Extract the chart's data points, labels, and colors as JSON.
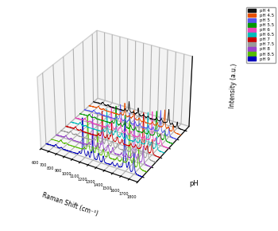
{
  "ph_labels": [
    "pH 4",
    "pH 4.5",
    "pH 5",
    "pH 5.5",
    "pH 6",
    "pH 6.5",
    "pH 7",
    "pH 7.5",
    "pH 8",
    "pH 8.5",
    "pH 9"
  ],
  "ph_colors": [
    "#111111",
    "#e85000",
    "#5555ee",
    "#009900",
    "#ee44bb",
    "#00bbbb",
    "#cc0000",
    "#999999",
    "#9944cc",
    "#55bb00",
    "#0000bb"
  ],
  "ph_values": [
    4.0,
    4.5,
    5.0,
    5.5,
    6.0,
    6.5,
    7.0,
    7.5,
    8.0,
    8.5,
    9.0
  ],
  "x_min": 600,
  "x_max": 1800,
  "xlabel": "Raman Shift (cm⁻¹)",
  "ylabel": "Intensity (a.u.)",
  "ph_label": "pH",
  "x_ticks": [
    600,
    700,
    800,
    900,
    1000,
    1100,
    1200,
    1300,
    1400,
    1500,
    1600,
    1700,
    1800
  ],
  "elev": 32,
  "azim": -60,
  "figw": 3.5,
  "figh": 2.9,
  "dpi": 100
}
